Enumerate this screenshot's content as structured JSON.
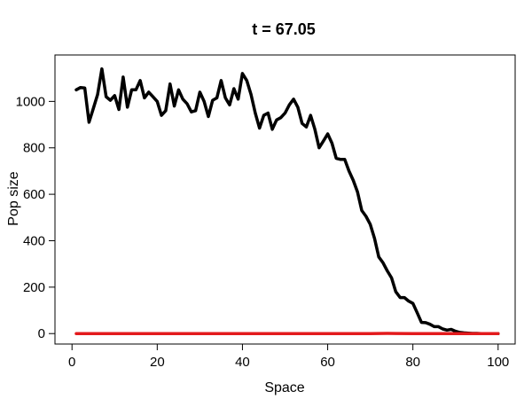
{
  "chart_data": {
    "type": "line",
    "title": "t = 67.05",
    "xlabel": "Space",
    "ylabel": "Pop size",
    "xlim": [
      -4,
      104
    ],
    "ylim": [
      -45,
      1200
    ],
    "xticks": [
      0,
      20,
      40,
      60,
      80,
      100
    ],
    "yticks": [
      0,
      200,
      400,
      600,
      800,
      1000
    ],
    "grid": false,
    "legend": "none",
    "series": [
      {
        "color": "#000000",
        "x": [
          1,
          2,
          3,
          4,
          5,
          6,
          7,
          8,
          9,
          10,
          11,
          12,
          13,
          14,
          15,
          16,
          17,
          18,
          19,
          20,
          21,
          22,
          23,
          24,
          25,
          26,
          27,
          28,
          29,
          30,
          31,
          32,
          33,
          34,
          35,
          36,
          37,
          38,
          39,
          40,
          41,
          42,
          43,
          44,
          45,
          46,
          47,
          48,
          49,
          50,
          51,
          52,
          53,
          54,
          55,
          56,
          57,
          58,
          59,
          60,
          61,
          62,
          63,
          64,
          65,
          66,
          67,
          68,
          69,
          70,
          71,
          72,
          73,
          74,
          75,
          76,
          77,
          78,
          79,
          80,
          81,
          82,
          83,
          84,
          85,
          86,
          87,
          88,
          89,
          90,
          91,
          92,
          93,
          94,
          95,
          96,
          97,
          98,
          99,
          100
        ],
        "values": [
          1050,
          1060,
          1058,
          910,
          970,
          1030,
          1140,
          1020,
          1005,
          1025,
          965,
          1105,
          975,
          1050,
          1050,
          1090,
          1015,
          1040,
          1020,
          1000,
          940,
          960,
          1075,
          980,
          1050,
          1010,
          990,
          955,
          960,
          1040,
          1000,
          935,
          1005,
          1015,
          1090,
          1015,
          985,
          1055,
          1010,
          1120,
          1090,
          1030,
          950,
          885,
          940,
          950,
          880,
          920,
          930,
          950,
          985,
          1010,
          975,
          905,
          890,
          940,
          880,
          800,
          830,
          860,
          820,
          755,
          750,
          750,
          700,
          660,
          610,
          530,
          505,
          470,
          410,
          330,
          305,
          270,
          240,
          180,
          155,
          155,
          140,
          130,
          90,
          48,
          47,
          40,
          30,
          30,
          20,
          15,
          18,
          10,
          5,
          3,
          2,
          1,
          1,
          0,
          0,
          0,
          0,
          0
        ]
      },
      {
        "color": "#e31a1c",
        "x": [
          1,
          10,
          20,
          30,
          40,
          50,
          60,
          70,
          72,
          74,
          76,
          80,
          90,
          100
        ],
        "values": [
          0,
          0,
          0,
          0,
          0,
          0,
          0,
          0,
          0.5,
          1,
          0.5,
          0,
          0,
          0
        ]
      }
    ]
  }
}
